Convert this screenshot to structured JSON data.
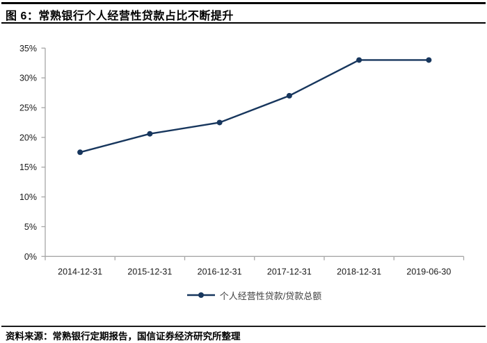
{
  "header": {
    "title": "图 6：常熟银行个人经营性贷款占比不断提升"
  },
  "chart_data": {
    "type": "line",
    "title": "图 6：常熟银行个人经营性贷款占比不断提升",
    "categories": [
      "2014-12-31",
      "2015-12-31",
      "2016-12-31",
      "2017-12-31",
      "2018-12-31",
      "2019-06-30"
    ],
    "series": [
      {
        "name": "个人经营性贷款/贷款总额",
        "values": [
          17.5,
          20.6,
          22.5,
          27.0,
          33.0,
          33.0
        ]
      }
    ],
    "xlabel": "",
    "ylabel": "",
    "ylim": [
      0,
      35
    ],
    "ytick_step": 5,
    "ytick_labels": [
      "0%",
      "5%",
      "10%",
      "15%",
      "20%",
      "25%",
      "30%",
      "35%"
    ],
    "grid": false,
    "legend_position": "bottom",
    "line_color": "#17365d",
    "axis_color": "#a6a6a6"
  },
  "footer": {
    "source": "资料来源：常熟银行定期报告，国信证券经济研究所整理"
  }
}
